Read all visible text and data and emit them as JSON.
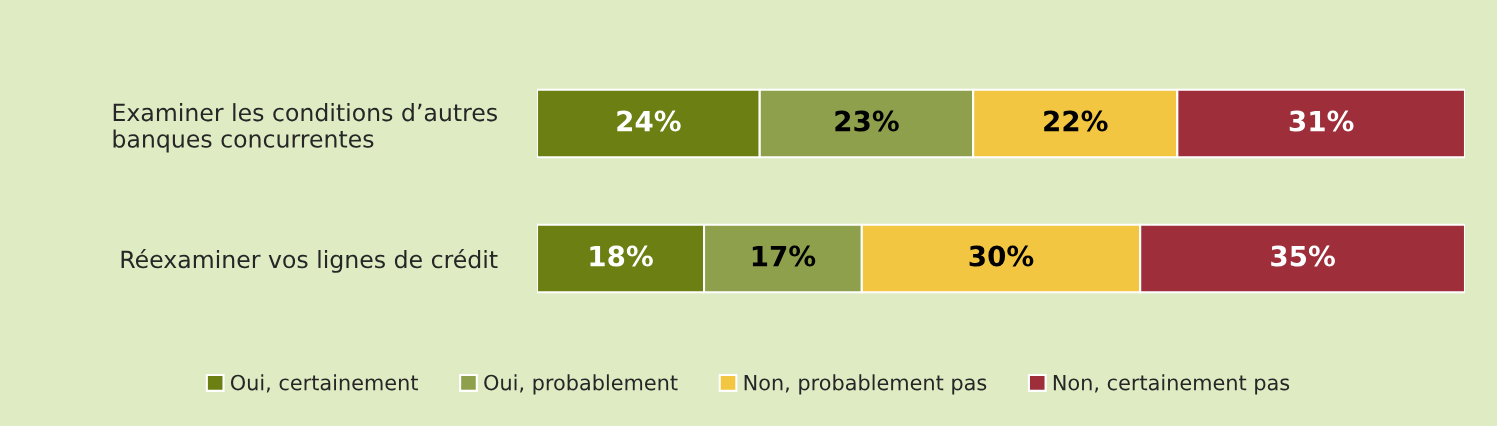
{
  "chart_data": {
    "type": "bar",
    "orientation": "horizontal",
    "stacked": true,
    "categories": [
      "Examiner les conditions d’autres\nbanques concurrentes",
      "Réexaminer vos lignes de crédit"
    ],
    "series": [
      {
        "name": "Oui, certainement",
        "color": "#6b7f12",
        "values": [
          24,
          18
        ],
        "value_labels": [
          "24%",
          "18%"
        ]
      },
      {
        "name": "Oui, probablement",
        "color": "#8fa04c",
        "values": [
          23,
          17
        ],
        "value_labels": [
          "23%",
          "17%"
        ]
      },
      {
        "name": "Non, probablement pas",
        "color": "#f2c641",
        "values": [
          22,
          30
        ],
        "value_labels": [
          "22%",
          "30%"
        ]
      },
      {
        "name": "Non, certainement pas",
        "color": "#9e2f3a",
        "values": [
          31,
          35
        ],
        "value_labels": [
          "31%",
          "35%"
        ]
      }
    ],
    "xlim": [
      0,
      100
    ],
    "tick_labels": "y",
    "grid": false,
    "legend": "bottom"
  }
}
